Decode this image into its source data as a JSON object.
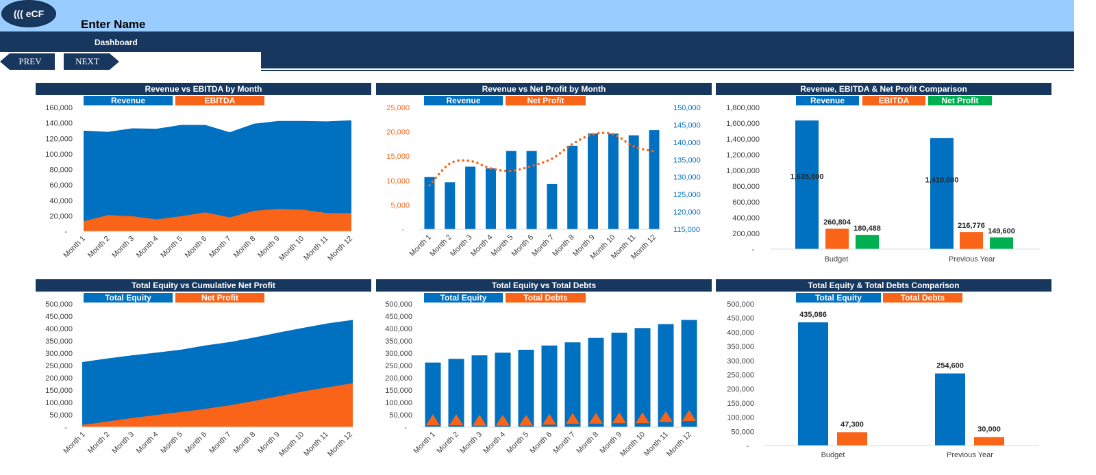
{
  "header": {
    "logo_text": "((( eCF",
    "title": "Enter Name",
    "section": "Dashboard"
  },
  "nav": {
    "prev_label": "PREV",
    "next_label": "NEXT"
  },
  "colors": {
    "blue": "#0070c0",
    "orange": "#fa6418",
    "green": "#00b050",
    "navy": "#17375e",
    "light_blue": "#99ccff"
  },
  "chart_data": [
    {
      "type": "area",
      "title": "Revenue vs EBITDA by Month",
      "categories": [
        "Month 1",
        "Month 2",
        "Month 3",
        "Month 4",
        "Month 5",
        "Month 6",
        "Month 7",
        "Month 8",
        "Month 9",
        "Month 10",
        "Month 11",
        "Month 12"
      ],
      "series": [
        {
          "name": "Revenue",
          "values": [
            130000,
            128500,
            133000,
            132500,
            137500,
            137500,
            128000,
            139000,
            142500,
            142500,
            142000,
            143500
          ]
        },
        {
          "name": "EBITDA",
          "values": [
            13000,
            21000,
            19500,
            15500,
            19500,
            24500,
            18000,
            26500,
            29000,
            28000,
            23500,
            23500
          ]
        }
      ],
      "ylim": [
        0,
        160000
      ],
      "yticks": [
        "-",
        "20,000",
        "40,000",
        "60,000",
        "80,000",
        "100,000",
        "120,000",
        "140,000",
        "160,000"
      ],
      "legend": "top"
    },
    {
      "type": "bar",
      "title": "Revenue vs Net Profit by Month",
      "categories": [
        "Month 1",
        "Month 2",
        "Month 3",
        "Month 4",
        "Month 5",
        "Month 6",
        "Month 7",
        "Month 8",
        "Month 9",
        "Month 10",
        "Month 11",
        "Month 12"
      ],
      "series": [
        {
          "name": "Revenue",
          "chart": "bar",
          "axis": "right",
          "values": [
            130000,
            128500,
            133000,
            132500,
            137500,
            137500,
            128000,
            139000,
            142500,
            142500,
            142000,
            143500
          ]
        },
        {
          "name": "Net Profit",
          "chart": "dotted-line",
          "axis": "left",
          "values": [
            9000,
            13500,
            14000,
            12500,
            12000,
            13000,
            14500,
            17500,
            19500,
            19500,
            17000,
            16000
          ]
        }
      ],
      "ylim_left": [
        0,
        25000
      ],
      "ylim_right": [
        115000,
        150000
      ],
      "yticks_left": [
        "-",
        "5,000",
        "10,000",
        "15,000",
        "20,000",
        "25,000"
      ],
      "yticks_right": [
        "115,000",
        "120,000",
        "125,000",
        "130,000",
        "135,000",
        "140,000",
        "145,000",
        "150,000"
      ],
      "legend": "top"
    },
    {
      "type": "bar",
      "title": "Revenue, EBITDA & Net Profit Comparison",
      "categories": [
        "Budget",
        "Previous Year"
      ],
      "series": [
        {
          "name": "Revenue",
          "values": [
            1635000,
            1410000
          ],
          "labels": [
            "1,635,000",
            "1,410,000"
          ]
        },
        {
          "name": "EBITDA",
          "values": [
            260804,
            216776
          ],
          "labels": [
            "260,804",
            "216,776"
          ]
        },
        {
          "name": "Net Profit",
          "values": [
            180488,
            149600
          ],
          "labels": [
            "180,488",
            "149,600"
          ]
        }
      ],
      "ylim": [
        0,
        1800000
      ],
      "yticks": [
        "-",
        "200,000",
        "400,000",
        "600,000",
        "800,000",
        "1,000,000",
        "1,200,000",
        "1,400,000",
        "1,600,000",
        "1,800,000"
      ],
      "legend": "top"
    },
    {
      "type": "area",
      "title": "Total Equity vs Cumulative Net Profit",
      "categories": [
        "Month 1",
        "Month 2",
        "Month 3",
        "Month 4",
        "Month 5",
        "Month 6",
        "Month 7",
        "Month 8",
        "Month 9",
        "Month 10",
        "Month 11",
        "Month 12"
      ],
      "series": [
        {
          "name": "Total Equity",
          "values": [
            264000,
            278000,
            291000,
            302000,
            314000,
            331000,
            345000,
            364000,
            384000,
            403000,
            421000,
            435000
          ]
        },
        {
          "name": "Net Profit",
          "values": [
            9000,
            22500,
            36500,
            49000,
            61000,
            74000,
            88500,
            106000,
            125500,
            145000,
            162000,
            178000
          ]
        }
      ],
      "ylim": [
        0,
        500000
      ],
      "yticks": [
        "-",
        "50,000",
        "100,000",
        "150,000",
        "200,000",
        "250,000",
        "300,000",
        "350,000",
        "400,000",
        "450,000",
        "500,000"
      ],
      "legend": "top"
    },
    {
      "type": "bar",
      "title": "Total Equity vs Total Debts",
      "categories": [
        "Month 1",
        "Month 2",
        "Month 3",
        "Month 4",
        "Month 5",
        "Month 6",
        "Month 7",
        "Month 8",
        "Month 9",
        "Month 10",
        "Month 11",
        "Month 12"
      ],
      "series": [
        {
          "name": "Total Equity",
          "chart": "bar",
          "values": [
            262000,
            277000,
            291000,
            302000,
            314000,
            331000,
            344000,
            362000,
            383000,
            402000,
            418000,
            435000
          ]
        },
        {
          "name": "Total Debts",
          "chart": "triangle-marker",
          "values": [
            30000,
            30000,
            28000,
            28000,
            28000,
            32000,
            35000,
            36000,
            38000,
            38000,
            43000,
            47300
          ]
        }
      ],
      "ylim": [
        0,
        500000
      ],
      "yticks": [
        "-",
        "50,000",
        "100,000",
        "150,000",
        "200,000",
        "250,000",
        "300,000",
        "350,000",
        "400,000",
        "450,000",
        "500,000"
      ],
      "legend": "top"
    },
    {
      "type": "bar",
      "title": "Total Equity & Total Debts Comparison",
      "categories": [
        "Budget",
        "Previous Year"
      ],
      "series": [
        {
          "name": "Total Equity",
          "values": [
            435086,
            254600
          ],
          "labels": [
            "435,086",
            "254,600"
          ]
        },
        {
          "name": "Total Debts",
          "values": [
            47300,
            30000
          ],
          "labels": [
            "47,300",
            "30,000"
          ]
        }
      ],
      "ylim": [
        0,
        500000
      ],
      "yticks": [
        "-",
        "50,000",
        "100,000",
        "150,000",
        "200,000",
        "250,000",
        "300,000",
        "350,000",
        "400,000",
        "450,000",
        "500,000"
      ],
      "legend": "top"
    }
  ]
}
